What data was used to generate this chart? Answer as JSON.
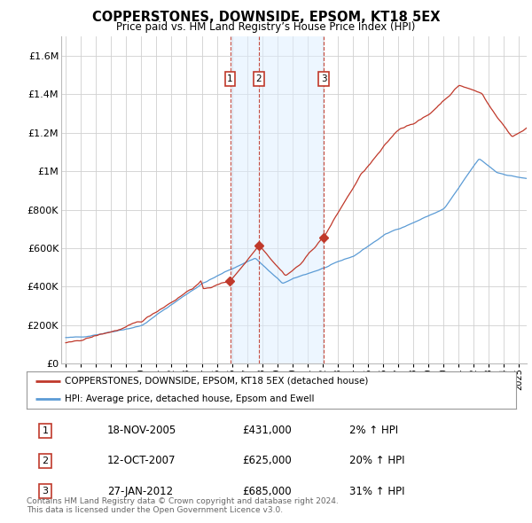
{
  "title": "COPPERSTONES, DOWNSIDE, EPSOM, KT18 5EX",
  "subtitle": "Price paid vs. HM Land Registry’s House Price Index (HPI)",
  "ylabel_ticks": [
    "£0",
    "£200K",
    "£400K",
    "£600K",
    "£800K",
    "£1M",
    "£1.2M",
    "£1.4M",
    "£1.6M"
  ],
  "ytick_values": [
    0,
    200000,
    400000,
    600000,
    800000,
    1000000,
    1200000,
    1400000,
    1600000
  ],
  "ylim": [
    0,
    1700000
  ],
  "xlim_start": 1994.7,
  "xlim_end": 2025.5,
  "legend_line1": "COPPERSTONES, DOWNSIDE, EPSOM, KT18 5EX (detached house)",
  "legend_line2": "HPI: Average price, detached house, Epsom and Ewell",
  "sale_events": [
    {
      "num": 1,
      "date": "18-NOV-2005",
      "price": "£431,000",
      "pct": "2%",
      "direction": "↑",
      "year": 2005.88
    },
    {
      "num": 2,
      "date": "12-OCT-2007",
      "price": "£625,000",
      "pct": "20%",
      "direction": "↑",
      "year": 2007.78
    },
    {
      "num": 3,
      "date": "27-JAN-2012",
      "price": "£685,000",
      "pct": "31%",
      "direction": "↑",
      "year": 2012.07
    }
  ],
  "footnote1": "Contains HM Land Registry data © Crown copyright and database right 2024.",
  "footnote2": "This data is licensed under the Open Government Licence v3.0.",
  "hpi_color": "#5b9bd5",
  "price_color": "#c0392b",
  "grid_color": "#d0d0d0",
  "bg_color": "#ffffff",
  "shade_color": "#ddeeff"
}
